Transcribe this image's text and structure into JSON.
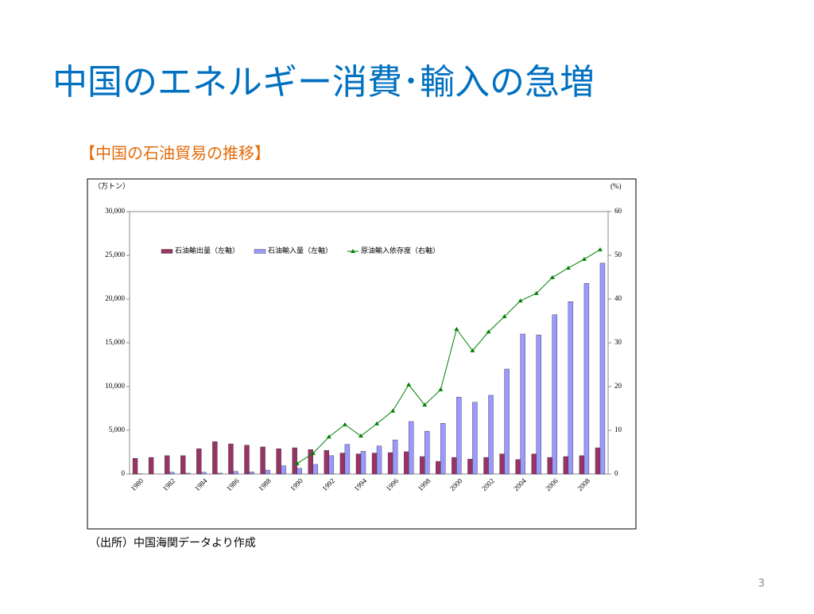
{
  "slide": {
    "title": "中国のエネルギー消費･輸入の急増",
    "page_number": "3"
  },
  "chart_data": {
    "type": "bar",
    "title": "【中国の石油貿易の推移】",
    "ylabel": "（万トン）",
    "y2label": "(%)",
    "source": "（出所）中国海関データより作成",
    "categories": [
      "1980",
      null,
      "1982",
      null,
      "1984",
      null,
      "1986",
      null,
      "1988",
      null,
      "1990",
      null,
      "1992",
      null,
      "1994",
      null,
      "1996",
      null,
      "1998",
      null,
      "2000",
      null,
      "2002",
      null,
      "2004",
      null,
      "2006",
      null,
      "2008",
      null
    ],
    "series": [
      {
        "name": "石油輸出量（左軸）",
        "type": "bar",
        "color": "#993366",
        "values": [
          1800,
          1900,
          2100,
          2100,
          2900,
          3700,
          3450,
          3300,
          3100,
          2900,
          3000,
          2800,
          2700,
          2400,
          2300,
          2400,
          2450,
          2550,
          2000,
          1450,
          1900,
          1700,
          1900,
          2300,
          1650,
          2300,
          1900,
          2000,
          2100,
          3000
        ]
      },
      {
        "name": "石油輸入量（左軸）",
        "type": "bar",
        "color": "#9999ff",
        "values": [
          20,
          0,
          200,
          100,
          200,
          100,
          300,
          250,
          450,
          950,
          650,
          1100,
          2100,
          3400,
          2600,
          3200,
          3900,
          6000,
          4900,
          5800,
          8800,
          8200,
          9000,
          12000,
          16000,
          15900,
          18200,
          19700,
          21800,
          24100
        ]
      },
      {
        "name": "原油輸入依存度（右軸）",
        "type": "line",
        "axis": "y2",
        "color": "#008000",
        "values": [
          null,
          null,
          null,
          null,
          null,
          null,
          null,
          null,
          null,
          null,
          2.4,
          4.7,
          8.5,
          11.3,
          8.7,
          11.5,
          14.4,
          20.4,
          15.8,
          19.3,
          33.1,
          28.2,
          32.5,
          36,
          39.6,
          41.3,
          44.9,
          47.1,
          49.1,
          51.3
        ]
      }
    ],
    "ylim": [
      0,
      30000
    ],
    "yticks": [
      0,
      {
        "value": 5000,
        "label": "5,000"
      },
      {
        "value": 10000,
        "label": "10,000"
      },
      {
        "value": 15000,
        "label": "15,000"
      },
      {
        "value": 20000,
        "label": "20,000"
      },
      {
        "value": 25000,
        "label": "25,000"
      },
      {
        "value": 30000,
        "label": "30,000"
      }
    ],
    "y2lim": [
      0,
      60
    ],
    "y2ticks": [
      0,
      10,
      20,
      30,
      40,
      50,
      60
    ],
    "legend": "top-left"
  }
}
